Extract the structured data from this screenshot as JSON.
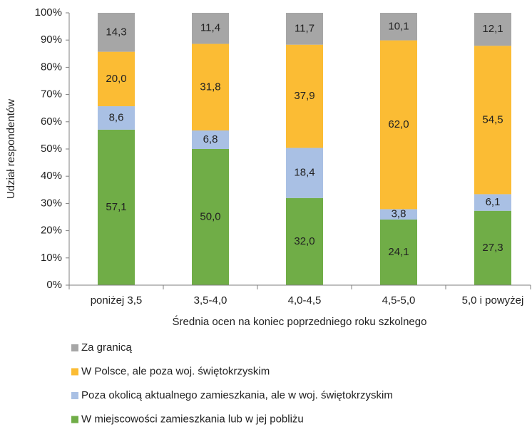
{
  "chart_data": {
    "type": "stacked_bar",
    "x_label": "Średnia ocen na koniec poprzedniego roku szkolnego",
    "y_label": "Udział respondentów",
    "categories": [
      "poniżej 3,5",
      "3,5-4,0",
      "4,0-4,5",
      "4,5-5,0",
      "5,0 i powyżej"
    ],
    "series": [
      {
        "name": "W miejscowości zamieszkania lub w jej pobliżu",
        "color": "#70ad47",
        "values": [
          57.1,
          50.0,
          32.0,
          24.1,
          27.3
        ],
        "value_labels": [
          "57,1",
          "50,0",
          "32,0",
          "24,1",
          "27,3"
        ]
      },
      {
        "name": "Poza okolicą aktualnego zamieszkania, ale w woj. świętokrzyskim",
        "color": "#a9c0e4",
        "values": [
          8.6,
          6.8,
          18.4,
          3.8,
          6.1
        ],
        "value_labels": [
          "8,6",
          "6,8",
          "18,4",
          "3,8",
          "6,1"
        ]
      },
      {
        "name": "W Polsce, ale poza woj. świętokrzyskim",
        "color": "#fbbc34",
        "values": [
          20.0,
          31.8,
          37.9,
          62.0,
          54.5
        ],
        "value_labels": [
          "20,0",
          "31,8",
          "37,9",
          "62,0",
          "54,5"
        ]
      },
      {
        "name": "Za granicą",
        "color": "#a6a6a6",
        "values": [
          14.3,
          11.4,
          11.7,
          10.1,
          12.1
        ],
        "value_labels": [
          "14,3",
          "11,4",
          "11,7",
          "10,1",
          "12,1"
        ]
      }
    ],
    "ylim": [
      0,
      100
    ],
    "yticks": [
      {
        "value": 0,
        "label": "0%"
      },
      {
        "value": 10,
        "label": "10%"
      },
      {
        "value": 20,
        "label": "20%"
      },
      {
        "value": 30,
        "label": "30%"
      },
      {
        "value": 40,
        "label": "40%"
      },
      {
        "value": 50,
        "label": "50%"
      },
      {
        "value": 60,
        "label": "60%"
      },
      {
        "value": 70,
        "label": "70%"
      },
      {
        "value": 80,
        "label": "80%"
      },
      {
        "value": 90,
        "label": "90%"
      },
      {
        "value": 100,
        "label": "100%"
      }
    ],
    "grid": false,
    "legend": "bottom"
  }
}
